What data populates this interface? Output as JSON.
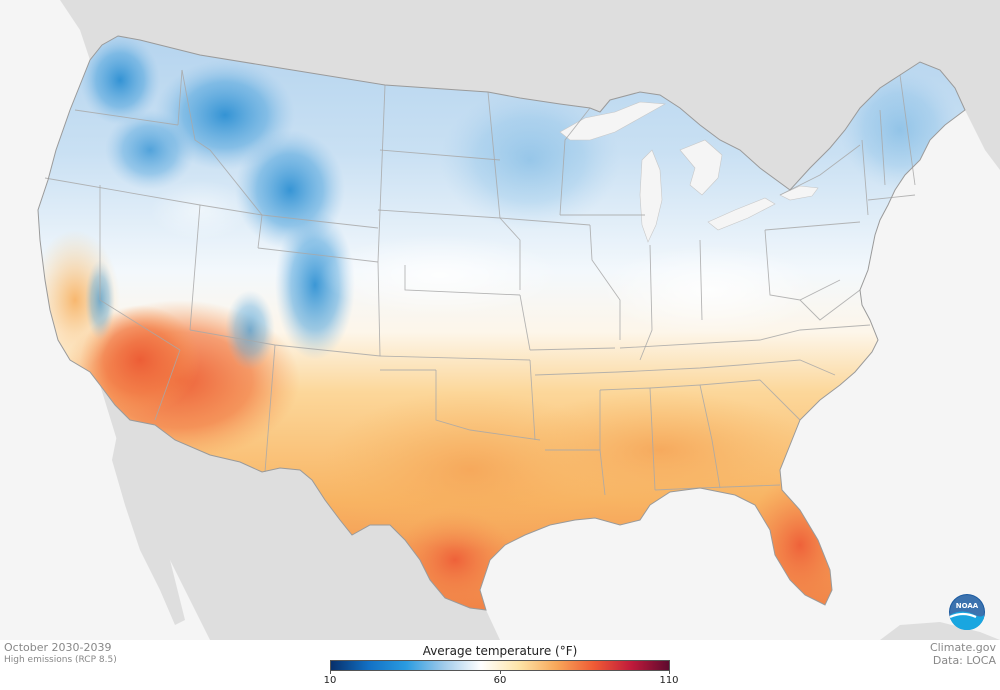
{
  "map": {
    "title": "Average temperature",
    "unit": "(°F)",
    "period": "October 2030-2039",
    "scenario": "High emissions (RCP 8.5)",
    "site": "Climate.gov",
    "source": "Data: LOCA",
    "logo_text": "NOAA"
  },
  "legend": {
    "min": 10,
    "mid": 60,
    "max": 110,
    "tick_labels": [
      "10",
      "60",
      "110"
    ],
    "color_stops": [
      "#08306b",
      "#1270c4",
      "#2a9be0",
      "#9fcaea",
      "#ffffff",
      "#fde4a8",
      "#f7a75a",
      "#ef5b35",
      "#c01a3b",
      "#5e0a2e"
    ]
  },
  "colors": {
    "background": "#f5f5f5",
    "land": "#dedede",
    "water": "#f5f5f5",
    "cold": "#2b8fd4",
    "cool": "#b9d6ee",
    "neutral": "#fbfbfb",
    "warm": "#f8bb6a",
    "hot": "#ee6a3d",
    "border": "#9a9a9a"
  }
}
